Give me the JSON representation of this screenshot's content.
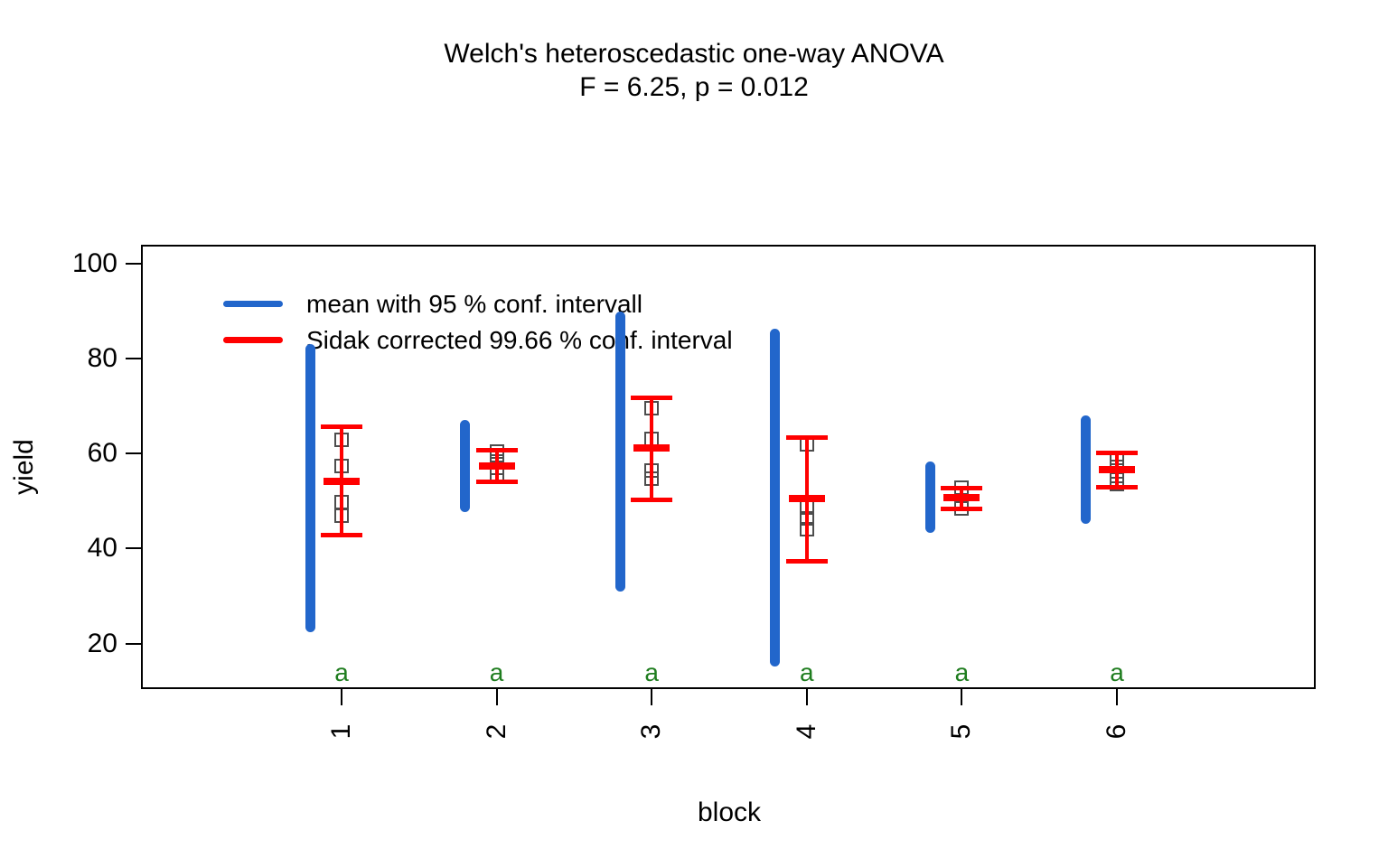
{
  "title": {
    "line1": "Welch's heteroscedastic one-way ANOVA",
    "line2": "F = 6.25, p = 0.012"
  },
  "legend": {
    "items": [
      {
        "label": "mean with 95 % conf. intervall",
        "color": "#2266cb"
      },
      {
        "label": "Sidak corrected 99.66 % conf. interval",
        "color": "#ff0000"
      }
    ]
  },
  "axes": {
    "y": {
      "label": "yield",
      "ticks": [
        100,
        80,
        60,
        40,
        20
      ]
    },
    "x": {
      "label": "block",
      "ticks": [
        "1",
        "2",
        "3",
        "4",
        "5",
        "6"
      ]
    }
  },
  "colors": {
    "blue": "#2266cb",
    "red": "#ff0000",
    "gray": "#4d4d4d",
    "green": "#1f7d1f",
    "black": "#000000"
  },
  "chart_data": {
    "type": "scatter",
    "title": "Welch's heteroscedastic one-way ANOVA",
    "subtitle": "F = 6.25, p = 0.012",
    "xlabel": "block",
    "ylabel": "yield",
    "ylim": [
      10,
      104
    ],
    "yticks": [
      20,
      40,
      60,
      80,
      100
    ],
    "categories": [
      "1",
      "2",
      "3",
      "4",
      "5",
      "6"
    ],
    "legend_position": "top-left-inside",
    "grid": false,
    "groups": [
      {
        "block": "1",
        "mean": 54.2,
        "ci95": [
          23.4,
          82.0
        ],
        "sidak_ci": [
          42.8,
          65.7
        ],
        "points": [
          62.8,
          57.4,
          49.8,
          47.0
        ],
        "letter": "a"
      },
      {
        "block": "2",
        "mean": 57.4,
        "ci95": [
          48.7,
          66.1
        ],
        "sidak_ci": [
          54.0,
          60.7
        ],
        "points": [
          60.5,
          58.4,
          57.0,
          55.6
        ],
        "letter": "a"
      },
      {
        "block": "3",
        "mean": 61.2,
        "ci95": [
          31.9,
          88.9
        ],
        "sidak_ci": [
          50.2,
          71.8
        ],
        "points": [
          69.5,
          63.0,
          56.5,
          54.7
        ],
        "letter": "a"
      },
      {
        "block": "4",
        "mean": 50.5,
        "ci95": [
          16.1,
          85.4
        ],
        "sidak_ci": [
          37.3,
          63.3
        ],
        "points": [
          62.0,
          48.7,
          46.3,
          44.0
        ],
        "letter": "a"
      },
      {
        "block": "5",
        "mean": 50.7,
        "ci95": [
          44.3,
          57.4
        ],
        "sidak_ci": [
          48.4,
          52.8
        ],
        "points": [
          52.8,
          51.3,
          49.9,
          48.5
        ],
        "letter": "a"
      },
      {
        "block": "6",
        "mean": 56.6,
        "ci95": [
          46.2,
          67.1
        ],
        "sidak_ci": [
          53.0,
          60.2
        ],
        "points": [
          59.0,
          57.1,
          55.2,
          53.5
        ],
        "letter": "a"
      }
    ]
  }
}
